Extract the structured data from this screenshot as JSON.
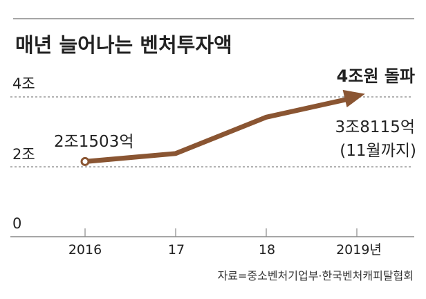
{
  "chart_data": {
    "type": "line",
    "title": "매년 늘어나는 벤처투자액",
    "x": [
      2016,
      2017,
      2018,
      2019
    ],
    "xtick_labels": [
      "2016",
      "17",
      "18",
      "2019년"
    ],
    "series": [
      {
        "name": "벤처투자액 (조원)",
        "values": [
          2.1503,
          2.38,
          3.42,
          3.8115
        ]
      }
    ],
    "yticks": [
      0,
      2,
      4
    ],
    "ytick_labels": [
      "0",
      "2조",
      "4조"
    ],
    "ylim": [
      0,
      4.5
    ],
    "grid": "dashed at 2조 and 4조",
    "annotations": {
      "start_value": "2조1503억",
      "end_value": "3조8115억",
      "end_note": "(11월까지)",
      "headline": "4조원 돌파"
    },
    "source": "자료=중소벤처기업부·한국벤처캐피탈협회",
    "colors": {
      "line": "#8a5532",
      "text": "#222222",
      "grid": "#999999"
    }
  }
}
